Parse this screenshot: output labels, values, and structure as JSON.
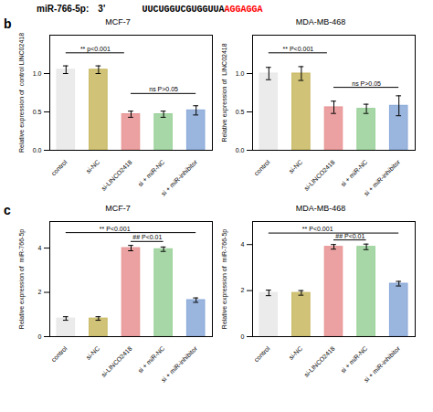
{
  "header": [
    {
      "text": "miR-766-5p:",
      "color": "black"
    },
    {
      "text": "3’",
      "color": "black"
    },
    {
      "text": "UUCUGGUCGUGGUUA",
      "color": "black"
    },
    {
      "text": "AGGAGGA",
      "color": "red"
    }
  ],
  "panel_labels": [
    "b",
    "c"
  ],
  "chart_data": [
    {
      "type": "bar",
      "title": "MCF-7",
      "y_label": "Relative expression of  control LINC02418",
      "categories": [
        "control",
        "si-NC",
        "si-LINCO2418",
        "si + miR-NC",
        "si + miR-inhibitor"
      ],
      "values": [
        1.05,
        1.05,
        0.47,
        0.47,
        0.52
      ],
      "errors": [
        0.05,
        0.05,
        0.04,
        0.04,
        0.06
      ],
      "colors": [
        "#e8e8e8",
        "#c8b860",
        "#e89090",
        "#98d098",
        "#88a8d8"
      ],
      "ylim": [
        0.0,
        1.5
      ],
      "yticks": [
        {
          "value": 0,
          "label": "0.0"
        },
        0.5,
        {
          "value": 1,
          "label": "1.0"
        }
      ],
      "annotations": [
        {
          "text": "** p<0.001",
          "x": 0.9,
          "y": 1.27,
          "x1": 0,
          "x2": 1.8
        },
        {
          "text": "ns P>0.05",
          "x": 3.0,
          "y": 0.74,
          "x1": 2,
          "x2": 4
        }
      ]
    },
    {
      "type": "bar",
      "title": "MDA-MB-468",
      "y_label": "Relative expression of  LINC02418",
      "categories": [
        "control",
        "si-NC",
        "si-LINCO2418",
        "si + miR-NC",
        "si + miR-inhibitor"
      ],
      "values": [
        1.0,
        1.0,
        0.56,
        0.54,
        0.58
      ],
      "errors": [
        0.08,
        0.09,
        0.08,
        0.06,
        0.13
      ],
      "colors": [
        "#e8e8e8",
        "#c8b860",
        "#e89090",
        "#98d098",
        "#88a8d8"
      ],
      "ylim": [
        0.0,
        1.5
      ],
      "yticks": [
        {
          "value": 0,
          "label": "0.0"
        },
        0.5,
        {
          "value": 1,
          "label": "1.0"
        }
      ],
      "annotations": [
        {
          "text": "** P<0.001",
          "x": 0.9,
          "y": 1.27,
          "x1": 0,
          "x2": 1.8
        },
        {
          "text": "ns P>0.05",
          "x": 3.0,
          "y": 0.82,
          "x1": 2,
          "x2": 4
        }
      ]
    },
    {
      "type": "bar",
      "title": "MCF-7",
      "y_label": "Relative expression of  miR-766-5p",
      "categories": [
        "control",
        "si-NC",
        "si-LINCO2418",
        "si + miR-NC",
        "si + miR-inhibitor"
      ],
      "values": [
        0.82,
        0.82,
        4.0,
        3.95,
        1.65
      ],
      "errors": [
        0.08,
        0.08,
        0.12,
        0.1,
        0.1
      ],
      "colors": [
        "#e8e8e8",
        "#c8b860",
        "#e89090",
        "#98d098",
        "#88a8d8"
      ],
      "ylim": [
        0.0,
        5.2
      ],
      "yticks": [
        0,
        2,
        4
      ],
      "annotations": [
        {
          "text": "** P<0.001",
          "x": 1.5,
          "y": 4.7,
          "x1": 0,
          "x2": 4
        },
        {
          "text": "## P<0.01",
          "x": 2.5,
          "y": 4.3,
          "x1": 2,
          "x2": 3
        }
      ]
    },
    {
      "type": "bar",
      "title": "MDA-MB-468",
      "y_label": "Relative expression of  miR-766-5p",
      "categories": [
        "control",
        "si-NC",
        "si-LINCO2418",
        "si + miR-NC",
        "si + miR-inhibitor"
      ],
      "values": [
        1.9,
        1.9,
        3.9,
        3.9,
        2.3
      ],
      "errors": [
        0.12,
        0.1,
        0.1,
        0.12,
        0.1
      ],
      "colors": [
        "#e8e8e8",
        "#c8b860",
        "#e89090",
        "#98d098",
        "#88a8d8"
      ],
      "ylim": [
        0.0,
        5.0
      ],
      "yticks": [
        0,
        2,
        4
      ],
      "annotations": [
        {
          "text": "** P<0.001",
          "x": 1.5,
          "y": 4.5,
          "x1": 0,
          "x2": 4
        },
        {
          "text": "## P<0.01",
          "x": 2.5,
          "y": 4.2,
          "x1": 2,
          "x2": 3
        }
      ]
    }
  ]
}
